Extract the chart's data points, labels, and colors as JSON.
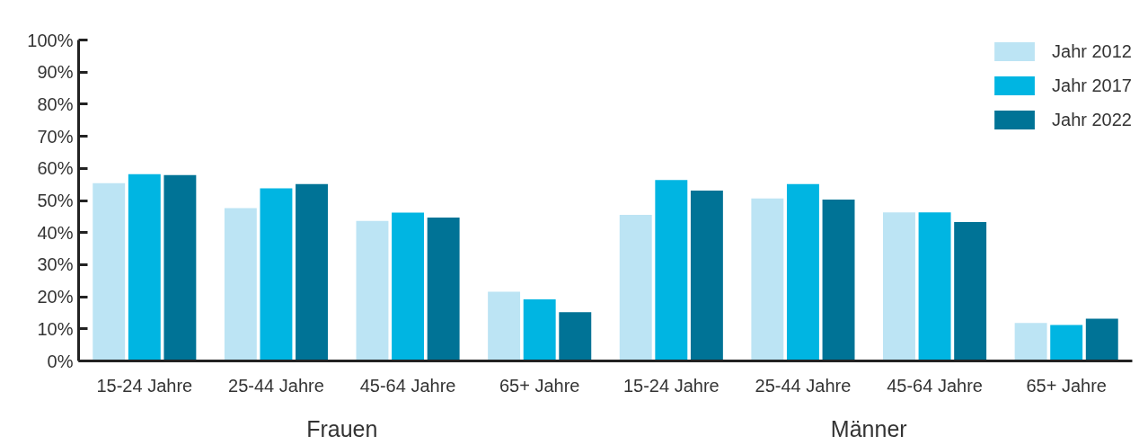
{
  "chart_data": {
    "type": "bar",
    "categories": [
      "15-24 Jahre",
      "25-44 Jahre",
      "45-64 Jahre",
      "65+ Jahre",
      "15-24 Jahre",
      "25-44 Jahre",
      "45-64 Jahre",
      "65+ Jahre"
    ],
    "series": [
      {
        "name": "Jahr 2012",
        "color": "#bce4f4",
        "values": [
          55.4,
          47.6,
          43.6,
          21.6,
          45.5,
          50.6,
          46.3,
          11.8
        ]
      },
      {
        "name": "Jahr 2017",
        "color": "#00b5e2",
        "values": [
          58.2,
          53.8,
          46.2,
          19.2,
          56.4,
          55.1,
          46.3,
          11.2
        ]
      },
      {
        "name": "Jahr 2022",
        "color": "#007396",
        "values": [
          57.9,
          55.1,
          44.7,
          15.2,
          53.1,
          50.3,
          43.3,
          13.2
        ]
      }
    ],
    "ylim": [
      0,
      100
    ],
    "yticks": [
      {
        "value": 0,
        "label": "0%"
      },
      {
        "value": 10,
        "label": "10%"
      },
      {
        "value": 20,
        "label": "20%"
      },
      {
        "value": 30,
        "label": "30%"
      },
      {
        "value": 40,
        "label": "40%"
      },
      {
        "value": 50,
        "label": "50%"
      },
      {
        "value": 60,
        "label": "60%"
      },
      {
        "value": 70,
        "label": "70%"
      },
      {
        "value": 80,
        "label": "80%"
      },
      {
        "value": 90,
        "label": "90%"
      },
      {
        "value": 100,
        "label": "100%"
      }
    ],
    "annotations": [
      "Frauen",
      "Männer"
    ],
    "legend": "top right",
    "grid": false
  }
}
